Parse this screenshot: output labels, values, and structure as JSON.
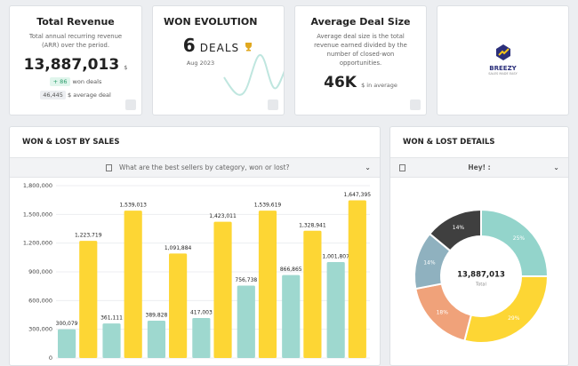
{
  "cards": [
    {
      "title": "Total Revenue",
      "description": "Total annual recurring revenue (ARR) over the period.",
      "value": "13,887,013",
      "unit": "$",
      "badge": "+ 86",
      "badge_text": "won deals",
      "average": "46,445",
      "average_text": "$ average deal"
    },
    {
      "title": "WON EVOLUTION",
      "value": "6",
      "unit": "DEALS",
      "date": "Aug 2023"
    },
    {
      "title": "Average Deal Size",
      "description": "Average deal size is the total revenue earned divided by the number of closed-won opportunities.",
      "value": "46K",
      "unit": "$ in average"
    }
  ],
  "logo": {
    "name": "BREEZY",
    "tagline": "SALES MADE EASY"
  },
  "panels": [
    {
      "title": "WON & LOST BY SALES",
      "prompt": "What are the best sellers by category, won or lost?"
    },
    {
      "title": "WON & LOST DETAILS",
      "prompt": "Hey! :"
    }
  ],
  "chart_data": [
    {
      "type": "bar",
      "series": [
        {
          "color": "#9ed8cf",
          "values": [
            300079,
            361111,
            389828,
            417003,
            756738,
            866865,
            1001807
          ],
          "value_labels": [
            "300,079",
            "361,111",
            "389,828",
            "417,003",
            "756,738",
            "866,865",
            "1,001,807"
          ]
        },
        {
          "color": "#fdd634",
          "values": [
            1223719,
            1539013,
            1091884,
            1423011,
            1539619,
            1328941,
            1647395
          ],
          "value_labels": [
            "1,223,719",
            "1,539,013",
            "1,091,884",
            "1,423,011",
            "1,539,619",
            "1,328,941",
            "1,647,395"
          ]
        }
      ],
      "ylim": [
        0,
        1800000
      ],
      "yticks": [
        0,
        {
          "value": 300000,
          "label": "300,000"
        },
        {
          "value": 600000,
          "label": "600,000"
        },
        {
          "value": 900000,
          "label": "900,000"
        },
        {
          "value": 1200000,
          "label": "1,200,000"
        },
        {
          "value": 1500000,
          "label": "1,500,000"
        },
        {
          "value": 1800000,
          "label": "1,800,000"
        }
      ],
      "grid": true
    },
    {
      "type": "pie",
      "values": [
        25,
        29,
        18,
        14,
        14
      ],
      "value_labels": [
        "25%",
        "29%",
        "18%",
        "14%",
        "14%"
      ],
      "colors": [
        "#93d4cb",
        "#fdd634",
        "#f0a27a",
        "#8fb1bf",
        "#3f3f3f"
      ],
      "total_label": "13,887,013",
      "total_caption": "Total"
    }
  ]
}
